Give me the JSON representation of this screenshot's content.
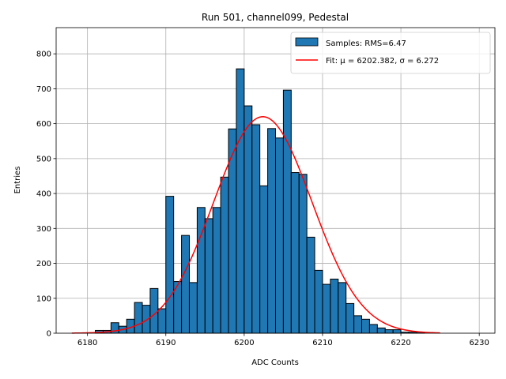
{
  "chart_data": {
    "type": "bar",
    "title": "Run 501, channel099, Pedestal",
    "xlabel": "ADC Counts",
    "ylabel": "Entries",
    "xlim": [
      6176,
      6232
    ],
    "ylim": [
      0,
      875
    ],
    "xticks": [
      6180,
      6190,
      6200,
      6210,
      6220,
      6230
    ],
    "yticks": [
      0,
      100,
      200,
      300,
      400,
      500,
      600,
      700,
      800
    ],
    "grid": true,
    "legend_position": "top-right",
    "bar_color": "#1f77b4",
    "fit_color": "#ff0000",
    "bin_width": 1,
    "bins_left": [
      6181,
      6182,
      6183,
      6184,
      6185,
      6186,
      6187,
      6188,
      6189,
      6190,
      6191,
      6192,
      6193,
      6194,
      6195,
      6196,
      6197,
      6198,
      6199,
      6200,
      6201,
      6202,
      6203,
      6204,
      6205,
      6206,
      6207,
      6208,
      6209,
      6210,
      6211,
      6212,
      6213,
      6214,
      6215,
      6216,
      6217,
      6218,
      6219,
      6220,
      6221,
      6222
    ],
    "counts": [
      8,
      8,
      30,
      20,
      40,
      88,
      80,
      128,
      70,
      392,
      148,
      280,
      145,
      360,
      328,
      360,
      447,
      585,
      757,
      651,
      597,
      422,
      586,
      559,
      696,
      460,
      455,
      275,
      180,
      140,
      155,
      145,
      85,
      50,
      40,
      25,
      15,
      10,
      10,
      3,
      3,
      3
    ],
    "fit": {
      "mu": 6202.382,
      "sigma": 6.272,
      "amplitude": 620,
      "x_range": [
        6178,
        6225
      ]
    },
    "legend": [
      {
        "type": "bar",
        "label": "Samples: RMS=6.47"
      },
      {
        "type": "line",
        "label_prefix": "Fit: ",
        "label": "μ = 6202.382, σ = 6.272"
      }
    ]
  }
}
